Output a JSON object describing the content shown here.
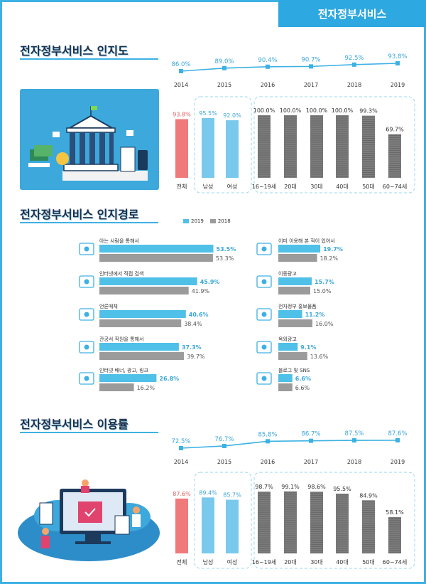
{
  "header": {
    "badge": "전자정부서비스"
  },
  "colors": {
    "accent": "#3db1e3",
    "total": "#f07a7a",
    "light_blue": "#78c9ec",
    "gray_bar": "#7d7d7d",
    "gray_2018": "#9b9b9b",
    "blue_2019": "#4fc0e8"
  },
  "sections": {
    "awareness_title": "전자정부서비스 인지도",
    "path_title": "전자정부서비스 인지경로",
    "usage_title": "전자정부서비스 이용률"
  },
  "legend": {
    "y2019": "2019",
    "y2018": "2018"
  },
  "chart_data": [
    {
      "type": "line",
      "title": "전자정부서비스 인지도",
      "x": [
        "2014",
        "2015",
        "2016",
        "2017",
        "2018",
        "2019"
      ],
      "values": [
        86.0,
        89.0,
        90.4,
        90.7,
        92.5,
        93.8
      ],
      "labels": [
        "86.0%",
        "89.0%",
        "90.4%",
        "90.7%",
        "92.5%",
        "93.8%"
      ]
    },
    {
      "type": "bar",
      "categories": [
        "전체",
        "남성",
        "여성",
        "16~19세",
        "20대",
        "30대",
        "40대",
        "50대",
        "60~74세"
      ],
      "values": [
        93.8,
        95.5,
        92.0,
        100.0,
        100.0,
        100.0,
        100.0,
        99.3,
        69.7
      ],
      "labels": [
        "93.8%",
        "95.5%",
        "92.0%",
        "100.0%",
        "100.0%",
        "100.0%",
        "100.0%",
        "99.3%",
        "69.7%"
      ]
    },
    {
      "type": "bar",
      "title": "전자정부서비스 인지경로",
      "orientation": "horizontal",
      "categories": [
        "아는 사람을 통해서",
        "인터넷에서 직접 검색",
        "언론매체",
        "관공서 직원을 통해서",
        "인터넷 배너, 광고, 링크",
        "이미 이용해 본 적이 있어서",
        "이동광고",
        "전자정부 홍보물품",
        "옥외광고",
        "블로그 및 SNS"
      ],
      "series": [
        {
          "name": "2019",
          "values": [
            53.5,
            45.9,
            40.6,
            37.3,
            26.8,
            19.7,
            15.7,
            11.2,
            9.1,
            6.6
          ],
          "labels": [
            "53.5%",
            "45.9%",
            "40.6%",
            "37.3%",
            "26.8%",
            "19.7%",
            "15.7%",
            "11.2%",
            "9.1%",
            "6.6%"
          ]
        },
        {
          "name": "2018",
          "values": [
            53.3,
            41.9,
            38.4,
            39.7,
            16.2,
            18.2,
            15.0,
            16.0,
            13.6,
            6.6
          ],
          "labels": [
            "53.3%",
            "41.9%",
            "38.4%",
            "39.7%",
            "16.2%",
            "18.2%",
            "15.0%",
            "16.0%",
            "13.6%",
            "6.6%"
          ]
        }
      ]
    },
    {
      "type": "line",
      "title": "전자정부서비스 이용률",
      "x": [
        "2014",
        "2015",
        "2016",
        "2017",
        "2018",
        "2019"
      ],
      "values": [
        72.5,
        76.7,
        85.8,
        86.7,
        87.5,
        87.6
      ],
      "labels": [
        "72.5%",
        "76.7%",
        "85.8%",
        "86.7%",
        "87.5%",
        "87.6%"
      ]
    },
    {
      "type": "bar",
      "categories": [
        "전체",
        "남성",
        "여성",
        "16~19세",
        "20대",
        "30대",
        "40대",
        "50대",
        "60~74세"
      ],
      "values": [
        87.6,
        89.4,
        85.7,
        98.7,
        99.1,
        98.6,
        95.5,
        84.9,
        58.1
      ],
      "labels": [
        "87.6%",
        "89.4%",
        "85.7%",
        "98.7%",
        "99.1%",
        "98.6%",
        "95.5%",
        "84.9%",
        "58.1%"
      ]
    }
  ]
}
